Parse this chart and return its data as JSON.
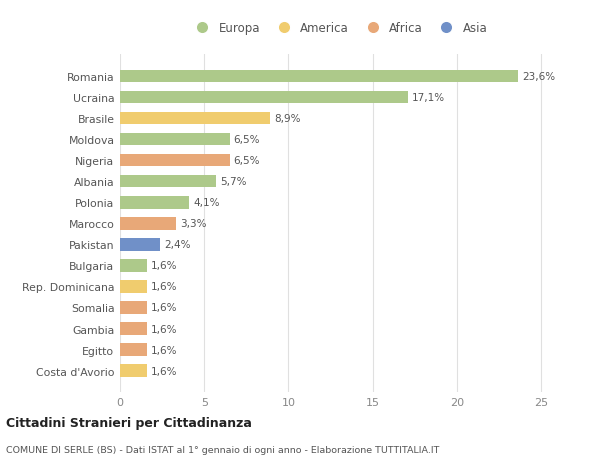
{
  "countries": [
    "Romania",
    "Ucraina",
    "Brasile",
    "Moldova",
    "Nigeria",
    "Albania",
    "Polonia",
    "Marocco",
    "Pakistan",
    "Bulgaria",
    "Rep. Dominicana",
    "Somalia",
    "Gambia",
    "Egitto",
    "Costa d'Avorio"
  ],
  "values": [
    23.6,
    17.1,
    8.9,
    6.5,
    6.5,
    5.7,
    4.1,
    3.3,
    2.4,
    1.6,
    1.6,
    1.6,
    1.6,
    1.6,
    1.6
  ],
  "labels": [
    "23,6%",
    "17,1%",
    "8,9%",
    "6,5%",
    "6,5%",
    "5,7%",
    "4,1%",
    "3,3%",
    "2,4%",
    "1,6%",
    "1,6%",
    "1,6%",
    "1,6%",
    "1,6%",
    "1,6%"
  ],
  "categories": [
    "Europa",
    "America",
    "Africa",
    "Asia"
  ],
  "bar_colors": [
    "#adc98a",
    "#adc98a",
    "#f0cc6e",
    "#adc98a",
    "#e8a878",
    "#adc98a",
    "#adc98a",
    "#e8a878",
    "#7090c8",
    "#adc98a",
    "#f0cc6e",
    "#e8a878",
    "#e8a878",
    "#e8a878",
    "#f0cc6e"
  ],
  "legend_colors": [
    "#adc98a",
    "#f0cc6e",
    "#e8a878",
    "#7090c8"
  ],
  "bg_color": "#ffffff",
  "grid_color": "#e0e0e0",
  "title": "Cittadini Stranieri per Cittadinanza",
  "subtitle": "COMUNE DI SERLE (BS) - Dati ISTAT al 1° gennaio di ogni anno - Elaborazione TUTTITALIA.IT",
  "xlim": [
    0,
    26
  ],
  "xticks": [
    0,
    5,
    10,
    15,
    20,
    25
  ]
}
